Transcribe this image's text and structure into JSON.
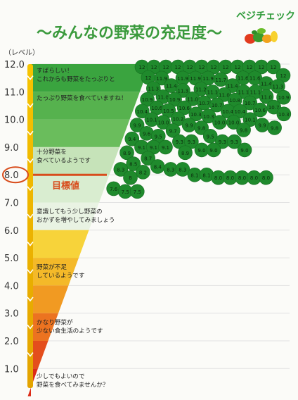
{
  "title": "～みんなの野菜の充足度～",
  "brand": {
    "logo_text": "ベジチェック"
  },
  "axis": {
    "unit_label": "（レベル）",
    "ticks": [
      "12.0",
      "11.0",
      "10.0",
      "9.0",
      "8.0",
      "7.0",
      "6.0",
      "5.0",
      "4.0",
      "3.0",
      "2.0",
      "1.0"
    ]
  },
  "target": {
    "label": "目標値",
    "tick": "8.0"
  },
  "bands": [
    {
      "level": 12,
      "color": "#3aa43f"
    },
    {
      "level": 11,
      "color": "#56b24e"
    },
    {
      "level": 10,
      "color": "#6abd5c"
    },
    {
      "level": 9,
      "color": "#c6e3b9"
    },
    {
      "level": 8,
      "color": "#d9edd0"
    },
    {
      "level": 7,
      "color": "#e9f3e3"
    },
    {
      "level": 6,
      "color": "#f7d33a"
    },
    {
      "level": 5,
      "color": "#f4b929"
    },
    {
      "level": 4,
      "color": "#f19a22"
    },
    {
      "level": 3,
      "color": "#ec7320"
    },
    {
      "level": 2,
      "color": "#e44e1c"
    },
    {
      "level": 1,
      "color": "#dc2b17"
    }
  ],
  "messages": [
    {
      "level": 11.7,
      "lines": [
        "すばらしい！",
        "これからも野菜をたっぷりと"
      ]
    },
    {
      "level": 10.7,
      "lines": [
        "たっぷり野菜を食べていますね！"
      ]
    },
    {
      "level": 8.75,
      "lines": [
        "十分野菜を",
        "食べているようです"
      ]
    },
    {
      "level": 6.6,
      "lines": [
        "意識してもう少し野菜の",
        "おかずを増やしてみましょう"
      ]
    },
    {
      "level": 4.6,
      "lines": [
        "野菜が不足",
        "しているようです"
      ]
    },
    {
      "level": 2.6,
      "lines": [
        "かなり野菜が",
        "少ない食生活のようです"
      ]
    },
    {
      "level": 0.65,
      "lines": [
        "少しでもよいので",
        "野菜を食べてみませんか？"
      ]
    }
  ],
  "colors": {
    "title": "#3a9a3c",
    "sticker": "#1f8a2c",
    "axis": "#f2b600",
    "target": "#d84c1b"
  },
  "chart_data": {
    "type": "scatter",
    "title": "～みんなの野菜の充足度～",
    "ylabel": "（レベル）",
    "ylim": [
      0.5,
      12.0
    ],
    "target": 8.0,
    "points": [
      {
        "label": "12",
        "y": 12.0
      },
      {
        "label": "12",
        "y": 12.0
      },
      {
        "label": "12",
        "y": 12.0
      },
      {
        "label": "12",
        "y": 12.0
      },
      {
        "label": "12",
        "y": 12.0
      },
      {
        "label": "12",
        "y": 12.0
      },
      {
        "label": "12",
        "y": 12.0
      },
      {
        "label": "12",
        "y": 12.0
      },
      {
        "label": "12",
        "y": 12.0
      },
      {
        "label": "11.9",
        "y": 11.9
      },
      {
        "label": "12",
        "y": 12.0
      },
      {
        "label": "12",
        "y": 12.0
      },
      {
        "label": "12",
        "y": 12.0
      },
      {
        "label": "12",
        "y": 12.0
      },
      {
        "label": "12",
        "y": 12.0
      },
      {
        "label": "11.9",
        "y": 11.9
      },
      {
        "label": "11.9",
        "y": 11.9
      },
      {
        "label": "11.6",
        "y": 11.6
      },
      {
        "label": "11.7",
        "y": 11.7
      },
      {
        "label": "11.9",
        "y": 11.9
      },
      {
        "label": "11.1",
        "y": 11.1
      },
      {
        "label": "11.3",
        "y": 11.3
      },
      {
        "label": "11.6",
        "y": 11.6
      },
      {
        "label": "11.3",
        "y": 11.3
      },
      {
        "label": "11.4",
        "y": 11.4
      },
      {
        "label": "11.1",
        "y": 11.1
      },
      {
        "label": "11.2",
        "y": 11.2
      },
      {
        "label": "11.1",
        "y": 11.1
      },
      {
        "label": "11.0",
        "y": 11.0
      },
      {
        "label": "11.3",
        "y": 11.3
      },
      {
        "label": "11.0",
        "y": 11.0
      },
      {
        "label": "11.4",
        "y": 11.4
      },
      {
        "label": "11.4",
        "y": 11.4
      },
      {
        "label": "11.0",
        "y": 11.0
      },
      {
        "label": "11.0",
        "y": 11.0
      },
      {
        "label": "10.7",
        "y": 10.7
      },
      {
        "label": "10.8",
        "y": 10.8
      },
      {
        "label": "10.5",
        "y": 10.5
      },
      {
        "label": "10.9",
        "y": 10.9
      },
      {
        "label": "10.7",
        "y": 10.7
      },
      {
        "label": "10.6",
        "y": 10.6
      },
      {
        "label": "10.9",
        "y": 10.9
      },
      {
        "label": "10.7",
        "y": 10.7
      },
      {
        "label": "10.6",
        "y": 10.6
      },
      {
        "label": "10.9",
        "y": 10.9
      },
      {
        "label": "10.1",
        "y": 10.1
      },
      {
        "label": "10.6",
        "y": 10.6
      },
      {
        "label": "10.1",
        "y": 10.1
      },
      {
        "label": "10.4",
        "y": 10.4
      },
      {
        "label": "10.4",
        "y": 10.4
      },
      {
        "label": "10.2",
        "y": 10.2
      },
      {
        "label": "10.3",
        "y": 10.3
      },
      {
        "label": "10.7",
        "y": 10.7
      },
      {
        "label": "10.4",
        "y": 10.4
      },
      {
        "label": "10.0",
        "y": 10.0
      },
      {
        "label": "10.3",
        "y": 10.3
      },
      {
        "label": "10.3",
        "y": 10.3
      },
      {
        "label": "10.0",
        "y": 10.0
      },
      {
        "label": "9.8",
        "y": 9.8
      },
      {
        "label": "10.0",
        "y": 10.0
      },
      {
        "label": "9.9",
        "y": 9.9
      },
      {
        "label": "9.8",
        "y": 9.8
      },
      {
        "label": "9.5",
        "y": 9.5
      },
      {
        "label": "9.9",
        "y": 9.9
      },
      {
        "label": "9.5",
        "y": 9.5
      },
      {
        "label": "9.8",
        "y": 9.8
      },
      {
        "label": "9.9",
        "y": 9.9
      },
      {
        "label": "9.7",
        "y": 9.7
      },
      {
        "label": "9.3",
        "y": 9.3
      },
      {
        "label": "9.4",
        "y": 9.4
      },
      {
        "label": "9.6",
        "y": 9.6
      },
      {
        "label": "9.3",
        "y": 9.3
      },
      {
        "label": "9.0",
        "y": 9.0
      },
      {
        "label": "9.3",
        "y": 9.3
      },
      {
        "label": "9.0",
        "y": 9.0
      },
      {
        "label": "9.1",
        "y": 9.1
      },
      {
        "label": "9.3",
        "y": 9.3
      },
      {
        "label": "9.1",
        "y": 9.1
      },
      {
        "label": "9.0",
        "y": 9.0
      },
      {
        "label": "9.1",
        "y": 9.1
      },
      {
        "label": "8.7",
        "y": 8.7
      },
      {
        "label": "8.9",
        "y": 8.9
      },
      {
        "label": "8.5",
        "y": 8.5
      },
      {
        "label": "8.9",
        "y": 8.9
      },
      {
        "label": "8.3",
        "y": 8.3
      },
      {
        "label": "8",
        "y": 8.0
      },
      {
        "label": "8.0",
        "y": 8.0
      },
      {
        "label": "8.1",
        "y": 8.1
      },
      {
        "label": "8.2",
        "y": 8.2
      },
      {
        "label": "8.0",
        "y": 8.0
      },
      {
        "label": "8.0",
        "y": 8.0
      },
      {
        "label": "8.0",
        "y": 8.0
      },
      {
        "label": "8.0",
        "y": 8.0
      },
      {
        "label": "8.1",
        "y": 8.1
      },
      {
        "label": "8.3",
        "y": 8.3
      },
      {
        "label": "8.4",
        "y": 8.4
      },
      {
        "label": "8.3",
        "y": 8.3
      },
      {
        "label": "7.5",
        "y": 7.5
      },
      {
        "label": "7.6",
        "y": 7.6
      },
      {
        "label": "7.5",
        "y": 7.5
      }
    ]
  }
}
